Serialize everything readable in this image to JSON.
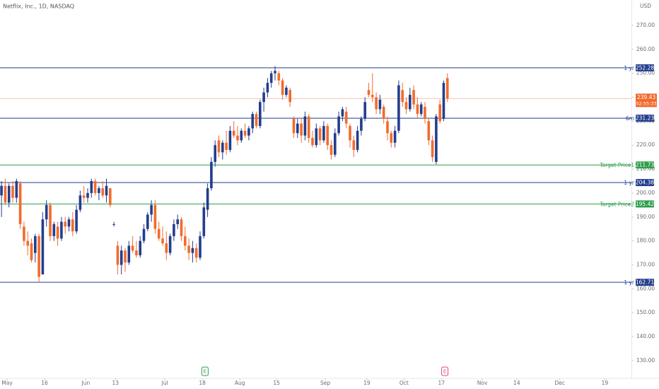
{
  "chart_data": {
    "type": "candlestick",
    "title": "Netflix, Inc., 1D, NASDAQ",
    "currency": "USD",
    "up_color": "#233d8e",
    "down_color": "#f26b2c",
    "open": [
      199,
      203,
      196,
      203,
      198,
      204,
      186,
      180,
      179,
      175,
      182,
      166,
      189,
      195,
      182,
      186,
      181,
      188,
      186,
      189,
      184,
      193,
      199,
      198,
      200,
      205,
      200,
      202,
      199,
      202,
      187,
      178,
      170,
      176,
      171,
      178,
      176,
      174,
      180,
      185,
      191,
      195,
      185,
      181,
      179,
      175,
      182,
      187,
      189,
      182,
      178,
      175,
      177,
      173,
      182,
      193,
      202,
      213,
      222,
      217,
      221,
      218,
      226,
      224,
      222,
      226,
      224,
      227,
      233,
      228,
      238,
      242,
      246,
      250,
      250,
      247,
      241,
      243,
      231,
      225,
      229,
      224,
      232,
      223,
      220,
      227,
      222,
      228,
      220,
      216,
      225,
      232,
      234,
      228,
      222,
      218,
      226,
      231,
      243,
      241,
      240,
      235,
      236,
      230,
      225,
      221,
      226,
      243,
      238,
      235,
      243,
      237,
      233,
      236,
      230,
      222,
      213,
      237,
      231,
      248
    ],
    "high": [
      205,
      206,
      204,
      205,
      206,
      205,
      188,
      184,
      181,
      183,
      183,
      192,
      197,
      196,
      188,
      188,
      190,
      190,
      190,
      192,
      195,
      201,
      203,
      202,
      206,
      206,
      203,
      205,
      206,
      202,
      188,
      180,
      178,
      177,
      180,
      182,
      180,
      182,
      187,
      192,
      197,
      197,
      188,
      186,
      184,
      183,
      189,
      191,
      190,
      186,
      181,
      180,
      179,
      184,
      196,
      204,
      215,
      222,
      224,
      222,
      226,
      228,
      230,
      228,
      227,
      229,
      228,
      234,
      234,
      239,
      244,
      248,
      251,
      253,
      251,
      248,
      245,
      244,
      232,
      231,
      231,
      234,
      233,
      226,
      229,
      228,
      230,
      229,
      222,
      227,
      234,
      236,
      236,
      229,
      224,
      228,
      232,
      240,
      246,
      250,
      242,
      241,
      237,
      232,
      226,
      228,
      247,
      246,
      240,
      244,
      245,
      240,
      238,
      238,
      231,
      224,
      233,
      239,
      247,
      250
    ],
    "low": [
      190,
      195,
      194,
      196,
      196,
      185,
      178,
      174,
      171,
      171,
      163,
      166,
      186,
      180,
      180,
      178,
      180,
      183,
      184,
      182,
      183,
      192,
      196,
      196,
      198,
      199,
      197,
      198,
      196,
      194,
      186,
      166,
      166,
      167,
      170,
      175,
      173,
      173,
      179,
      184,
      188,
      183,
      180,
      178,
      172,
      174,
      180,
      185,
      180,
      176,
      172,
      171,
      171,
      172,
      181,
      190,
      201,
      211,
      215,
      214,
      216,
      217,
      223,
      220,
      221,
      223,
      222,
      225,
      227,
      227,
      234,
      240,
      244,
      247,
      245,
      239,
      240,
      236,
      223,
      223,
      221,
      222,
      221,
      219,
      219,
      220,
      221,
      218,
      214,
      215,
      224,
      230,
      227,
      219,
      215,
      217,
      224,
      230,
      240,
      238,
      233,
      233,
      229,
      222,
      219,
      219,
      225,
      236,
      233,
      234,
      235,
      231,
      232,
      229,
      220,
      213,
      212,
      229,
      230,
      238
    ],
    "close": [
      203,
      196,
      203,
      198,
      205,
      187,
      180,
      178,
      172,
      182,
      165,
      189,
      195,
      182,
      187,
      181,
      188,
      186,
      189,
      184,
      193,
      199,
      198,
      200,
      205,
      200,
      202,
      199,
      203,
      195,
      187,
      170,
      176,
      171,
      178,
      176,
      174,
      180,
      185,
      191,
      195,
      185,
      181,
      179,
      175,
      182,
      187,
      189,
      182,
      178,
      175,
      177,
      173,
      182,
      194,
      202,
      213,
      220,
      217,
      221,
      218,
      226,
      224,
      222,
      226,
      224,
      227,
      233,
      228,
      238,
      242,
      246,
      250,
      251,
      247,
      241,
      244,
      238,
      225,
      229,
      224,
      232,
      223,
      220,
      227,
      222,
      228,
      220,
      216,
      225,
      232,
      235,
      229,
      222,
      218,
      226,
      231,
      238,
      241,
      240,
      235,
      239,
      231,
      225,
      221,
      226,
      245,
      238,
      235,
      241,
      237,
      233,
      237,
      231,
      222,
      215,
      232,
      230,
      246,
      239.43
    ],
    "ylim": [
      122.6,
      280.6
    ],
    "yticks": [
      {
        "value": 130,
        "label": "130.00"
      },
      {
        "value": 140,
        "label": "140.00"
      },
      {
        "value": 150,
        "label": "150.00"
      },
      {
        "value": 160,
        "label": "160.00"
      },
      {
        "value": 170,
        "label": "170.00"
      },
      {
        "value": 180,
        "label": "180.00"
      },
      {
        "value": 190,
        "label": "190.00"
      },
      {
        "value": 200,
        "label": "200.00"
      },
      {
        "value": 210,
        "label": "210.00"
      },
      {
        "value": 220,
        "label": "220.00"
      },
      {
        "value": 230,
        "label": "230.00"
      },
      {
        "value": 240,
        "label": "240.00"
      },
      {
        "value": 250,
        "label": "250.00"
      },
      {
        "value": 260,
        "label": "260.00"
      },
      {
        "value": 270,
        "label": "270.00"
      }
    ],
    "xlim": [
      -0.4,
      168.1
    ],
    "xticks": [
      {
        "value": 1.5,
        "label": "May"
      },
      {
        "value": 11.5,
        "label": "16"
      },
      {
        "value": 22.5,
        "label": "Jun"
      },
      {
        "value": 30.4,
        "label": "13"
      },
      {
        "value": 43.6,
        "label": "Jul"
      },
      {
        "value": 53.6,
        "label": "18"
      },
      {
        "value": 63.6,
        "label": "Aug"
      },
      {
        "value": 73.4,
        "label": "15"
      },
      {
        "value": 86.4,
        "label": "Sep"
      },
      {
        "value": 97.5,
        "label": "19"
      },
      {
        "value": 107.4,
        "label": "Oct"
      },
      {
        "value": 117.4,
        "label": "17"
      },
      {
        "value": 128.3,
        "label": "Nov"
      },
      {
        "value": 137.5,
        "label": "14"
      },
      {
        "value": 149,
        "label": "Dec"
      },
      {
        "value": 161,
        "label": "19"
      }
    ],
    "levels": [
      {
        "value": 252.28,
        "label": "1 yr",
        "color": "#233d8e"
      },
      {
        "value": 231.23,
        "label": "6m",
        "color": "#233d8e"
      },
      {
        "value": 211.73,
        "label": "Target Price1",
        "color": "#2e9e4a"
      },
      {
        "value": 204.38,
        "label": "1 yr",
        "color": "#233d8e"
      },
      {
        "value": 195.42,
        "label": "Target Price2",
        "color": "#2e9e4a"
      },
      {
        "value": 162.71,
        "label": "1 yr",
        "color": "#233d8e"
      }
    ],
    "last_price": {
      "value": 239.43,
      "countdown": "02:55:33",
      "color": "#f26b2c"
    },
    "events": [
      {
        "x": 54.3,
        "label": "E",
        "color": "#2e9e4a"
      },
      {
        "x": 118.3,
        "label": "E",
        "color": "#e0457b"
      }
    ]
  }
}
